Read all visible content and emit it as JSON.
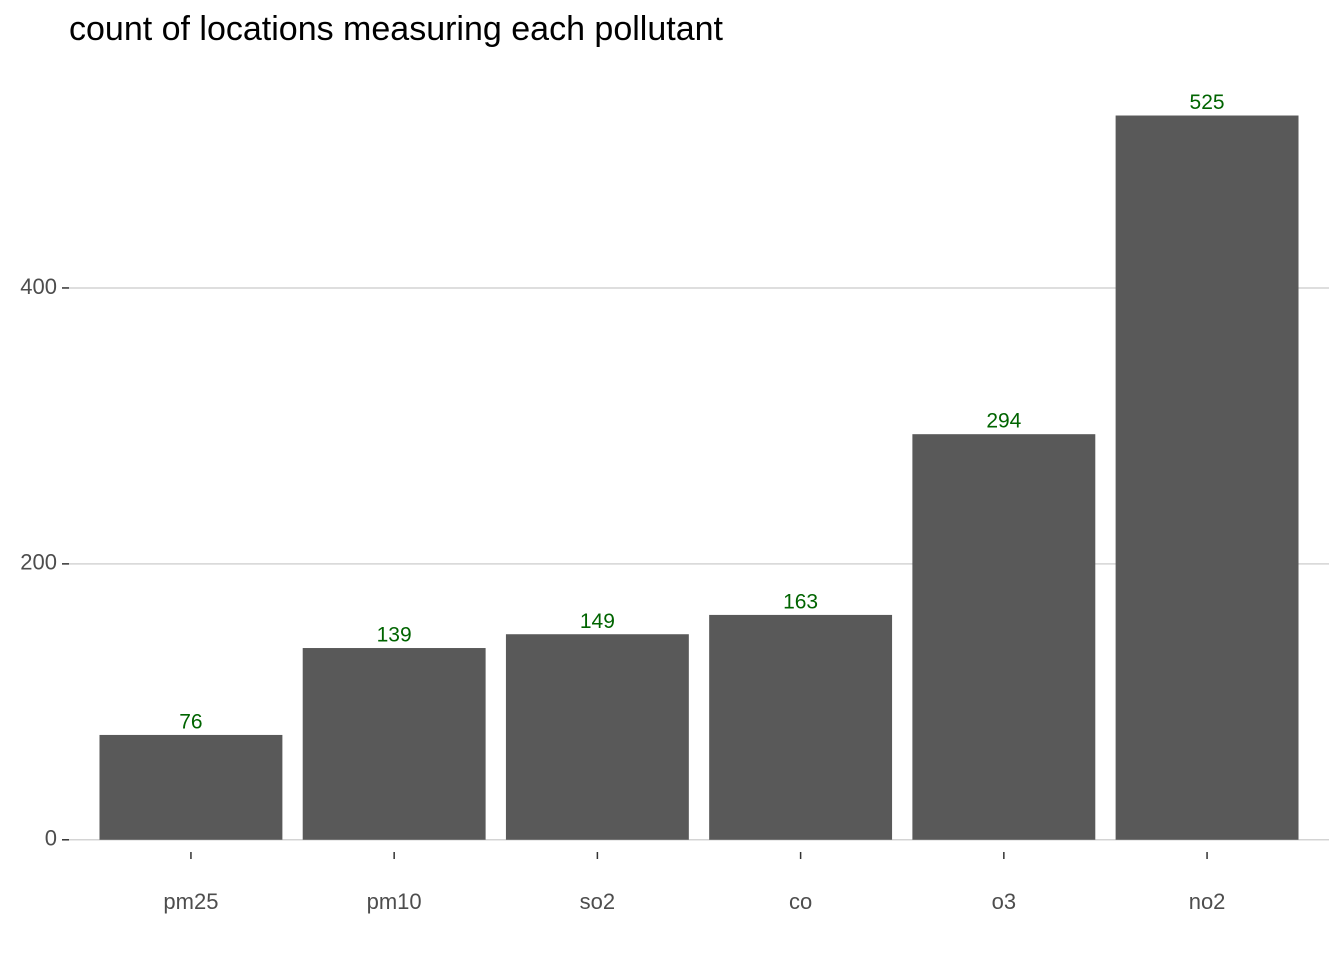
{
  "chart_data": {
    "type": "bar",
    "title": "count of locations measuring each pollutant",
    "categories": [
      "pm25",
      "pm10",
      "so2",
      "co",
      "o3",
      "no2"
    ],
    "values": [
      76,
      139,
      149,
      163,
      294,
      525
    ],
    "color": "#595959",
    "label_color": "#006400",
    "ylim": [
      -26.25,
      551.25
    ],
    "yticks": [
      0,
      200,
      400
    ],
    "grid": true
  }
}
